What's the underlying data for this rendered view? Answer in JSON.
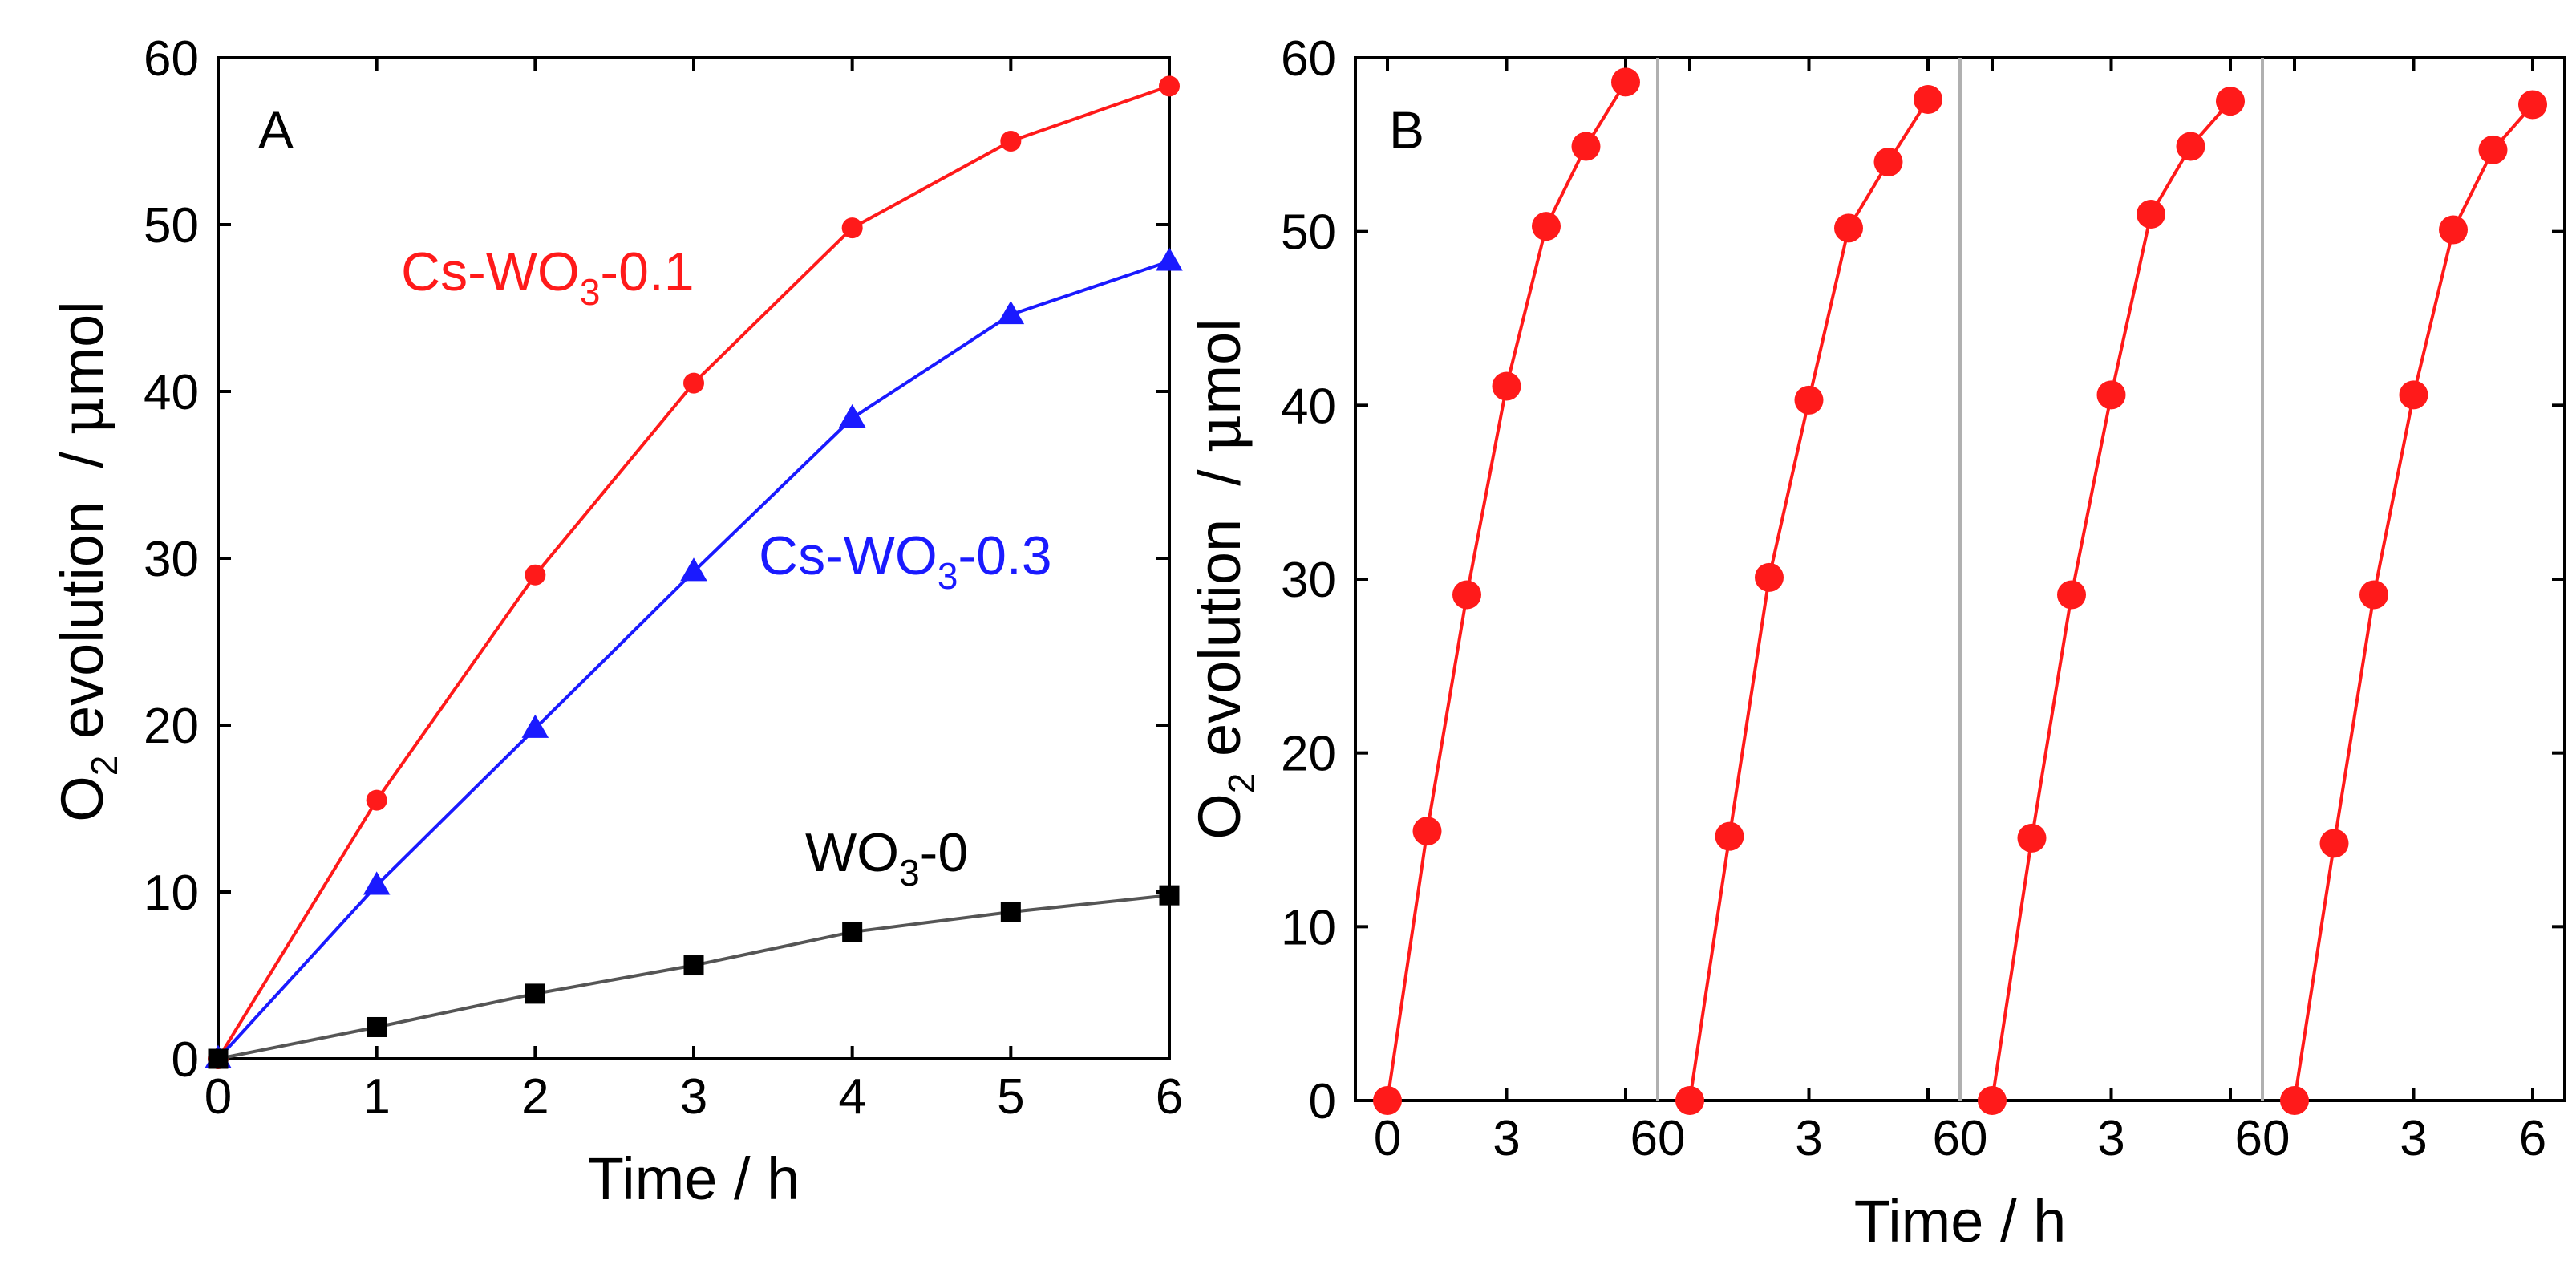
{
  "chart_data": [
    {
      "panel": "A",
      "type": "line",
      "xlabel": "Time / h",
      "ylabel_main": "O",
      "ylabel_sub": "2",
      "ylabel_mid": " evolution  / ",
      "ylabel_mu": "μ",
      "ylabel_tail": "mol",
      "xlim": [
        0,
        6
      ],
      "ylim": [
        0,
        60
      ],
      "xticks": [
        0,
        1,
        2,
        3,
        4,
        5,
        6
      ],
      "yticks": [
        0,
        10,
        20,
        30,
        40,
        50,
        60
      ],
      "series": [
        {
          "name": "Cs-WO3-0.1",
          "label_main": "Cs-WO",
          "label_sub": "3",
          "label_tail": "-0.1",
          "color": "#ff1a1a",
          "marker": "circle",
          "x": [
            0,
            1,
            2,
            3,
            4,
            5,
            6
          ],
          "values": [
            0,
            15.5,
            29.0,
            40.5,
            49.8,
            55.0,
            58.3
          ]
        },
        {
          "name": "Cs-WO3-0.3",
          "label_main": "Cs-WO",
          "label_sub": "3",
          "label_tail": "-0.3",
          "color": "#1a1aff",
          "marker": "triangle",
          "x": [
            0,
            1,
            2,
            3,
            4,
            5,
            6
          ],
          "values": [
            0,
            10.4,
            19.8,
            29.2,
            38.4,
            44.6,
            47.8
          ]
        },
        {
          "name": "WO3-0",
          "label_main": "WO",
          "label_sub": "3",
          "label_tail": "-0",
          "color": "#000000",
          "line_color": "#555555",
          "marker": "square",
          "x": [
            0,
            1,
            2,
            3,
            4,
            5,
            6
          ],
          "values": [
            0,
            1.9,
            3.9,
            5.6,
            7.6,
            8.8,
            9.8
          ]
        }
      ]
    },
    {
      "panel": "B",
      "type": "line",
      "xlabel": "Time / h",
      "ylabel_main": "O",
      "ylabel_sub": "2",
      "ylabel_mid": " evolution  / ",
      "ylabel_mu": "μ",
      "ylabel_tail": "mol",
      "ylim": [
        0,
        60
      ],
      "yticks": [
        0,
        10,
        20,
        30,
        40,
        50,
        60
      ],
      "cycle_xlim": [
        0,
        6
      ],
      "xtick_labels": [
        "0",
        "3",
        "60",
        "3",
        "60",
        "3",
        "60",
        "3",
        "6"
      ],
      "color": "#ff1a1a",
      "marker": "circle",
      "cycles": [
        {
          "x": [
            0,
            1,
            2,
            3,
            4,
            5,
            6
          ],
          "values": [
            0,
            15.5,
            29.1,
            41.1,
            50.3,
            54.9,
            58.6
          ]
        },
        {
          "x": [
            0,
            1,
            2,
            3,
            4,
            5,
            6
          ],
          "values": [
            0,
            15.2,
            30.1,
            40.3,
            50.2,
            54.0,
            57.6
          ]
        },
        {
          "x": [
            0,
            1,
            2,
            3,
            4,
            5,
            6
          ],
          "values": [
            0,
            15.1,
            29.1,
            40.6,
            51.0,
            54.9,
            57.5
          ]
        },
        {
          "x": [
            0,
            1,
            2,
            3,
            4,
            5,
            6
          ],
          "values": [
            0,
            14.8,
            29.1,
            40.6,
            50.1,
            54.7,
            57.3
          ]
        }
      ]
    }
  ]
}
